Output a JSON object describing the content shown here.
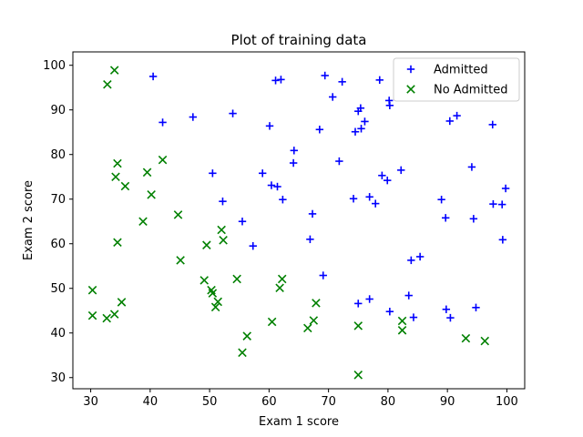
{
  "chart_data": {
    "type": "scatter",
    "title": "Plot of training data",
    "xlabel": "Exam 1 score",
    "ylabel": "Exam 2 score",
    "xlim": [
      27,
      103
    ],
    "ylim": [
      27.5,
      103
    ],
    "xticks": [
      30,
      40,
      50,
      60,
      70,
      80,
      90,
      100
    ],
    "yticks": [
      30,
      40,
      50,
      60,
      70,
      80,
      90,
      100
    ],
    "grid": false,
    "legend": "top-right",
    "series": [
      {
        "name": "Admitted",
        "marker": "plus",
        "color": "#0000ff",
        "points": [
          [
            40.5,
            97.5
          ],
          [
            42.1,
            87.2
          ],
          [
            47.2,
            88.4
          ],
          [
            50.5,
            75.8
          ],
          [
            52.2,
            69.5
          ],
          [
            53.9,
            89.2
          ],
          [
            55.5,
            65.0
          ],
          [
            57.3,
            59.5
          ],
          [
            58.9,
            75.8
          ],
          [
            60.1,
            86.4
          ],
          [
            60.4,
            73.1
          ],
          [
            61.1,
            96.6
          ],
          [
            61.4,
            72.8
          ],
          [
            62.0,
            96.8
          ],
          [
            62.3,
            69.9
          ],
          [
            64.1,
            78.1
          ],
          [
            64.2,
            80.9
          ],
          [
            66.9,
            61.0
          ],
          [
            67.3,
            66.7
          ],
          [
            68.5,
            85.6
          ],
          [
            69.1,
            52.9
          ],
          [
            69.4,
            97.7
          ],
          [
            70.7,
            92.9
          ],
          [
            71.8,
            78.5
          ],
          [
            72.3,
            96.3
          ],
          [
            74.2,
            70.1
          ],
          [
            74.5,
            85.1
          ],
          [
            75.0,
            89.7
          ],
          [
            75.0,
            46.6
          ],
          [
            75.4,
            90.4
          ],
          [
            75.5,
            85.8
          ],
          [
            76.1,
            87.4
          ],
          [
            76.9,
            70.5
          ],
          [
            76.9,
            47.6
          ],
          [
            77.9,
            69.0
          ],
          [
            78.6,
            96.7
          ],
          [
            79.0,
            75.3
          ],
          [
            79.9,
            74.2
          ],
          [
            80.2,
            92.1
          ],
          [
            80.3,
            91.0
          ],
          [
            80.3,
            44.8
          ],
          [
            82.2,
            76.5
          ],
          [
            83.5,
            48.4
          ],
          [
            83.9,
            56.3
          ],
          [
            84.3,
            43.5
          ],
          [
            85.4,
            57.1
          ],
          [
            89.0,
            69.9
          ],
          [
            89.7,
            65.8
          ],
          [
            89.8,
            45.3
          ],
          [
            90.4,
            87.5
          ],
          [
            90.5,
            43.4
          ],
          [
            91.6,
            88.7
          ],
          [
            94.1,
            77.2
          ],
          [
            94.4,
            65.6
          ],
          [
            94.8,
            45.7
          ],
          [
            97.6,
            86.7
          ],
          [
            97.7,
            68.9
          ],
          [
            99.2,
            68.8
          ],
          [
            99.3,
            60.9
          ],
          [
            99.8,
            72.4
          ]
        ]
      },
      {
        "name": "No Admitted",
        "marker": "x",
        "color": "#008000",
        "points": [
          [
            32.8,
            95.7
          ],
          [
            34.0,
            98.9
          ],
          [
            34.2,
            75.0
          ],
          [
            34.5,
            78.0
          ],
          [
            35.8,
            72.9
          ],
          [
            30.3,
            49.6
          ],
          [
            30.3,
            43.9
          ],
          [
            32.7,
            43.3
          ],
          [
            34.0,
            44.2
          ],
          [
            34.5,
            60.3
          ],
          [
            35.2,
            46.9
          ],
          [
            38.8,
            65.0
          ],
          [
            39.5,
            76.0
          ],
          [
            40.2,
            71.0
          ],
          [
            42.1,
            78.8
          ],
          [
            44.7,
            66.5
          ],
          [
            45.1,
            56.3
          ],
          [
            49.1,
            51.8
          ],
          [
            49.5,
            59.7
          ],
          [
            50.3,
            49.6
          ],
          [
            50.5,
            48.9
          ],
          [
            51.0,
            45.8
          ],
          [
            51.4,
            47.0
          ],
          [
            52.0,
            63.1
          ],
          [
            52.3,
            60.8
          ],
          [
            54.6,
            52.1
          ],
          [
            55.5,
            35.6
          ],
          [
            56.3,
            39.3
          ],
          [
            60.5,
            42.5
          ],
          [
            61.8,
            50.1
          ],
          [
            62.2,
            52.1
          ],
          [
            66.5,
            41.1
          ],
          [
            67.5,
            42.8
          ],
          [
            67.9,
            46.7
          ],
          [
            75.0,
            41.6
          ],
          [
            75.0,
            30.6
          ],
          [
            82.4,
            42.7
          ],
          [
            82.4,
            40.6
          ],
          [
            93.1,
            38.8
          ],
          [
            96.3,
            38.2
          ]
        ]
      }
    ]
  }
}
